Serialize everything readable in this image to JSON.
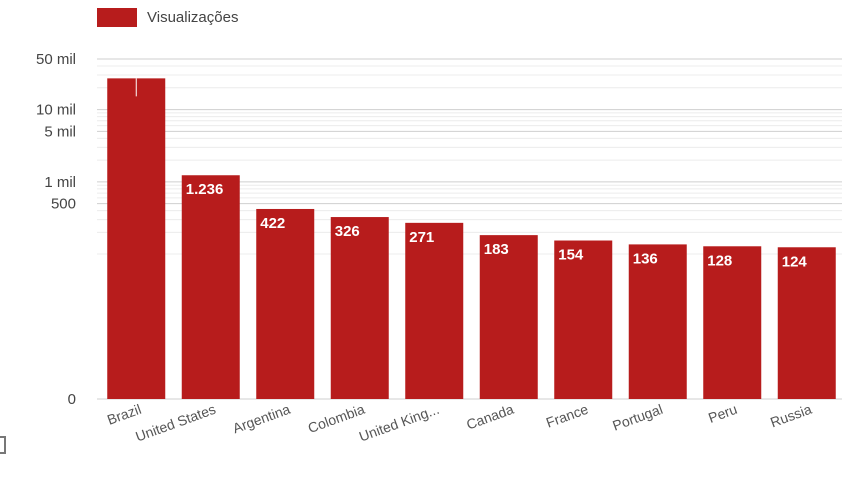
{
  "chart_data": {
    "type": "bar",
    "yscale": "log",
    "legend_position": "top-left",
    "grid": true,
    "color": "#b71c1c",
    "series": [
      {
        "name": "Visualizações",
        "values": [
          27000,
          1236,
          422,
          326,
          271,
          183,
          154,
          136,
          128,
          124
        ]
      }
    ],
    "categories": [
      "Brazil",
      "United States",
      "Argentina",
      "Colombia",
      "United King...",
      "Canada",
      "France",
      "Portugal",
      "Peru",
      "Russia"
    ],
    "value_labels": [
      "",
      "1.236",
      "422",
      "326",
      "271",
      "183",
      "154",
      "136",
      "128",
      "124"
    ],
    "y_ticks": [
      {
        "value": 50000,
        "label": "50 mil"
      },
      {
        "value": 10000,
        "label": "10 mil"
      },
      {
        "value": 5000,
        "label": "5 mil"
      },
      {
        "value": 1000,
        "label": "1 mil"
      },
      {
        "value": 500,
        "label": "500"
      },
      {
        "value": 0,
        "label": "0"
      }
    ]
  },
  "icons": {
    "corner": "expand-bracket-icon"
  }
}
